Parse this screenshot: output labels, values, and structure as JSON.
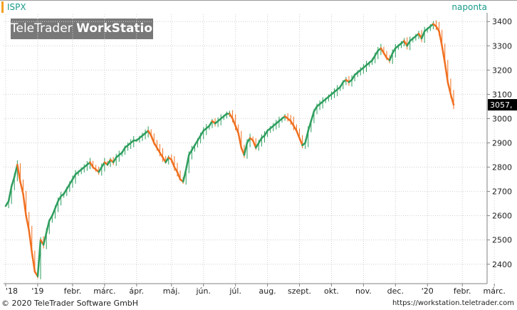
{
  "header": {
    "symbol": "ISPX",
    "interval": "naponta",
    "logo_light": "TeleTrader ",
    "logo_bold": "WorkStation"
  },
  "footer": {
    "copyright": "© 2020 TeleTrader Software GmbH",
    "url": "https://workstation.teletrader.com"
  },
  "colors": {
    "up": "#2e9e5e",
    "down": "#f07020",
    "grid": "#cfcfcf",
    "axis": "#808080",
    "last_box_bg": "#000000",
    "last_box_text": "#ffffff"
  },
  "chart_data": {
    "type": "line",
    "title": "ISPX",
    "xlabel": "",
    "ylabel": "",
    "last_value_label": "3057,",
    "ylim": [
      2320,
      3430
    ],
    "y_ticks": [
      2400,
      2500,
      2600,
      2700,
      2800,
      2900,
      3000,
      3100,
      3200,
      3300,
      3400
    ],
    "x_ticks": [
      {
        "label": "'18",
        "index": 0
      },
      {
        "label": "'19",
        "index": 11
      },
      {
        "label": "febr.",
        "index": 23
      },
      {
        "label": "márc.",
        "index": 34
      },
      {
        "label": "ápr.",
        "index": 45
      },
      {
        "label": "máj.",
        "index": 57
      },
      {
        "label": "jún.",
        "index": 68
      },
      {
        "label": "júl.",
        "index": 79
      },
      {
        "label": "aug.",
        "index": 90
      },
      {
        "label": "szept.",
        "index": 101
      },
      {
        "label": "okt.",
        "index": 112
      },
      {
        "label": "nov.",
        "index": 123
      },
      {
        "label": "dec.",
        "index": 134
      },
      {
        "label": "'20",
        "index": 145
      },
      {
        "label": "febr.",
        "index": 157
      },
      {
        "label": "márc.",
        "index": 168
      }
    ],
    "series": [
      {
        "values": [
          2640,
          2660,
          2720,
          2760,
          2810,
          2740,
          2690,
          2600,
          2540,
          2450,
          2370,
          2350,
          2500,
          2480,
          2530,
          2580,
          2600,
          2630,
          2660,
          2680,
          2690,
          2710,
          2730,
          2750,
          2770,
          2780,
          2790,
          2800,
          2810,
          2820,
          2800,
          2790,
          2780,
          2800,
          2820,
          2810,
          2830,
          2820,
          2840,
          2850,
          2860,
          2880,
          2890,
          2900,
          2910,
          2910,
          2920,
          2930,
          2940,
          2950,
          2930,
          2900,
          2880,
          2860,
          2840,
          2820,
          2840,
          2830,
          2800,
          2780,
          2750,
          2740,
          2790,
          2850,
          2870,
          2890,
          2910,
          2930,
          2950,
          2960,
          2970,
          2990,
          2980,
          2990,
          3000,
          3010,
          3020,
          3020,
          3000,
          2970,
          2940,
          2880,
          2850,
          2900,
          2920,
          2910,
          2880,
          2900,
          2920,
          2930,
          2950,
          2960,
          2970,
          2980,
          2990,
          3000,
          3010,
          3000,
          2990,
          2970,
          2950,
          2920,
          2890,
          2900,
          2950,
          2990,
          3030,
          3050,
          3060,
          3070,
          3080,
          3090,
          3100,
          3110,
          3120,
          3130,
          3150,
          3160,
          3150,
          3160,
          3180,
          3190,
          3200,
          3210,
          3220,
          3230,
          3240,
          3260,
          3280,
          3290,
          3270,
          3250,
          3240,
          3270,
          3290,
          3300,
          3310,
          3320,
          3300,
          3320,
          3330,
          3340,
          3350,
          3330,
          3360,
          3370,
          3380,
          3390,
          3380,
          3360,
          3300,
          3230,
          3150,
          3100,
          3057
        ]
      }
    ]
  }
}
